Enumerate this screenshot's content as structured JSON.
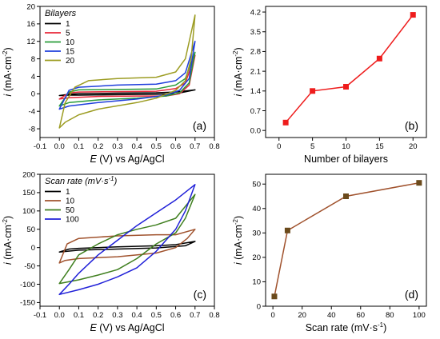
{
  "chart_data": [
    {
      "panel_label": "(a)",
      "type": "line",
      "subtype": "cyclic-voltammogram",
      "xlabel_var": "E",
      "xlabel_rest": " (V) vs Ag/AgCl",
      "ylabel_var": "i",
      "ylabel_rest": " (mA·cm",
      "ylabel_sup": "-2",
      "ylabel_close": ")",
      "xlim": [
        -0.1,
        0.8
      ],
      "ylim": [
        -10,
        20
      ],
      "xticks": [
        "-0.1",
        "0.0",
        "0.1",
        "0.2",
        "0.3",
        "0.4",
        "0.5",
        "0.6",
        "0.7",
        "0.8"
      ],
      "yticks": [
        "-8",
        "-4",
        "0",
        "4",
        "8",
        "12",
        "16",
        "20"
      ],
      "legend_title": "Bilayers",
      "legend_placement": "top-left",
      "series": [
        {
          "name": "1",
          "color": "#000000",
          "forward": [
            [
              0,
              -0.4
            ],
            [
              0.05,
              -0.1
            ],
            [
              0.1,
              0.0
            ],
            [
              0.3,
              0.15
            ],
            [
              0.5,
              0.25
            ],
            [
              0.6,
              0.4
            ],
            [
              0.7,
              0.9
            ]
          ],
          "reverse": [
            [
              0.7,
              0.9
            ],
            [
              0.6,
              0.0
            ],
            [
              0.5,
              -0.1
            ],
            [
              0.3,
              -0.2
            ],
            [
              0.1,
              -0.3
            ],
            [
              0.05,
              -0.3
            ],
            [
              0,
              -0.4
            ]
          ]
        },
        {
          "name": "5",
          "color": "#e8283a",
          "forward": [
            [
              0,
              -1.2
            ],
            [
              0.05,
              0.2
            ],
            [
              0.1,
              0.4
            ],
            [
              0.3,
              0.5
            ],
            [
              0.5,
              0.6
            ],
            [
              0.6,
              1.2
            ],
            [
              0.65,
              2.5
            ],
            [
              0.7,
              8.8
            ]
          ],
          "reverse": [
            [
              0.7,
              8.8
            ],
            [
              0.67,
              2.0
            ],
            [
              0.62,
              0.0
            ],
            [
              0.55,
              -0.5
            ],
            [
              0.4,
              -0.5
            ],
            [
              0.2,
              -0.6
            ],
            [
              0.05,
              -0.9
            ],
            [
              0,
              -1.2
            ]
          ]
        },
        {
          "name": "10",
          "color": "#2a9c3a",
          "forward": [
            [
              0,
              -2.8
            ],
            [
              0.05,
              0.4
            ],
            [
              0.1,
              0.9
            ],
            [
              0.3,
              1.0
            ],
            [
              0.5,
              1.1
            ],
            [
              0.6,
              2.0
            ],
            [
              0.65,
              3.5
            ],
            [
              0.7,
              9.5
            ]
          ],
          "reverse": [
            [
              0.7,
              9.5
            ],
            [
              0.67,
              2.5
            ],
            [
              0.62,
              0.2
            ],
            [
              0.55,
              -0.5
            ],
            [
              0.4,
              -1.0
            ],
            [
              0.2,
              -1.4
            ],
            [
              0.05,
              -2.0
            ],
            [
              0,
              -2.8
            ]
          ]
        },
        {
          "name": "15",
          "color": "#1f3fdc",
          "forward": [
            [
              0,
              -3.5
            ],
            [
              0.05,
              0.8
            ],
            [
              0.1,
              1.5
            ],
            [
              0.3,
              2.0
            ],
            [
              0.5,
              2.2
            ],
            [
              0.6,
              3.0
            ],
            [
              0.65,
              4.8
            ],
            [
              0.7,
              12.0
            ]
          ],
          "reverse": [
            [
              0.7,
              12.0
            ],
            [
              0.67,
              3.5
            ],
            [
              0.62,
              0.8
            ],
            [
              0.55,
              -0.3
            ],
            [
              0.4,
              -1.2
            ],
            [
              0.2,
              -2.0
            ],
            [
              0.05,
              -2.8
            ],
            [
              0,
              -3.5
            ]
          ]
        },
        {
          "name": "20",
          "color": "#9c9c22",
          "forward": [
            [
              0,
              -7.8
            ],
            [
              0.03,
              -2.0
            ],
            [
              0.08,
              1.5
            ],
            [
              0.15,
              3.0
            ],
            [
              0.3,
              3.5
            ],
            [
              0.5,
              3.8
            ],
            [
              0.6,
              5.0
            ],
            [
              0.65,
              8.0
            ],
            [
              0.7,
              18.0
            ]
          ],
          "reverse": [
            [
              0.7,
              18.0
            ],
            [
              0.68,
              8.0
            ],
            [
              0.65,
              3.0
            ],
            [
              0.6,
              0.8
            ],
            [
              0.5,
              -1.0
            ],
            [
              0.4,
              -2.0
            ],
            [
              0.2,
              -3.5
            ],
            [
              0.1,
              -4.8
            ],
            [
              0.03,
              -6.5
            ],
            [
              0,
              -7.8
            ]
          ]
        }
      ]
    },
    {
      "panel_label": "(b)",
      "type": "line",
      "xlabel": "Number of bilayers",
      "ylabel_var": "i",
      "ylabel_rest": " (mA·cm",
      "ylabel_sup": "-2",
      "ylabel_close": ")",
      "xlim": [
        -2,
        22
      ],
      "ylim": [
        -0.25,
        4.4
      ],
      "xticks": [
        "0",
        "5",
        "10",
        "15",
        "20"
      ],
      "yticks": [
        "0.0",
        "0.7",
        "1.4",
        "2.1",
        "2.8",
        "3.5",
        "4.2"
      ],
      "series": [
        {
          "color": "#ee1c1c",
          "x": [
            1,
            5,
            10,
            15,
            20
          ],
          "y": [
            0.28,
            1.4,
            1.55,
            2.55,
            4.1
          ]
        }
      ]
    },
    {
      "panel_label": "(c)",
      "type": "line",
      "subtype": "cyclic-voltammogram",
      "xlabel_var": "E",
      "xlabel_rest": " (V) vs Ag/AgCl",
      "ylabel_var": "i",
      "ylabel_rest": " (mA·cm",
      "ylabel_sup": "-2",
      "ylabel_close": ")",
      "xlim": [
        -0.1,
        0.8
      ],
      "ylim": [
        -160,
        200
      ],
      "xticks": [
        "-0.1",
        "0.0",
        "0.1",
        "0.2",
        "0.3",
        "0.4",
        "0.5",
        "0.6",
        "0.7",
        "0.8"
      ],
      "yticks": [
        "-150",
        "-100",
        "-50",
        "0",
        "50",
        "100",
        "150",
        "200"
      ],
      "legend_title": "Scan rate (mV·s",
      "legend_title_sup": "-1",
      "legend_title_close": ")",
      "legend_placement": "top-left",
      "series": [
        {
          "name": "1",
          "color": "#000000",
          "forward": [
            [
              0,
              -12
            ],
            [
              0.05,
              -4
            ],
            [
              0.1,
              -2
            ],
            [
              0.3,
              2
            ],
            [
              0.5,
              5
            ],
            [
              0.6,
              8
            ],
            [
              0.7,
              17
            ]
          ],
          "reverse": [
            [
              0.7,
              17
            ],
            [
              0.65,
              5
            ],
            [
              0.5,
              -1
            ],
            [
              0.3,
              -4
            ],
            [
              0.1,
              -7
            ],
            [
              0,
              -12
            ]
          ]
        },
        {
          "name": "10",
          "color": "#a0522d",
          "forward": [
            [
              0,
              -42
            ],
            [
              0.04,
              10
            ],
            [
              0.1,
              25
            ],
            [
              0.3,
              32
            ],
            [
              0.5,
              35
            ],
            [
              0.6,
              35
            ],
            [
              0.7,
              50
            ]
          ],
          "reverse": [
            [
              0.7,
              50
            ],
            [
              0.66,
              25
            ],
            [
              0.6,
              0
            ],
            [
              0.5,
              -15
            ],
            [
              0.3,
              -25
            ],
            [
              0.1,
              -30
            ],
            [
              0.03,
              -35
            ],
            [
              0,
              -42
            ]
          ]
        },
        {
          "name": "50",
          "color": "#3f7f1f",
          "forward": [
            [
              0,
              -98
            ],
            [
              0.05,
              -60
            ],
            [
              0.1,
              -20
            ],
            [
              0.2,
              10
            ],
            [
              0.3,
              35
            ],
            [
              0.4,
              50
            ],
            [
              0.5,
              62
            ],
            [
              0.6,
              80
            ],
            [
              0.7,
              145
            ]
          ],
          "reverse": [
            [
              0.7,
              145
            ],
            [
              0.65,
              80
            ],
            [
              0.6,
              40
            ],
            [
              0.5,
              10
            ],
            [
              0.4,
              -30
            ],
            [
              0.3,
              -60
            ],
            [
              0.2,
              -75
            ],
            [
              0.1,
              -88
            ],
            [
              0,
              -98
            ]
          ]
        },
        {
          "name": "100",
          "color": "#2020d8",
          "forward": [
            [
              0,
              -128
            ],
            [
              0.05,
              -100
            ],
            [
              0.1,
              -70
            ],
            [
              0.2,
              -20
            ],
            [
              0.3,
              20
            ],
            [
              0.4,
              60
            ],
            [
              0.5,
              95
            ],
            [
              0.6,
              130
            ],
            [
              0.7,
              172
            ]
          ],
          "reverse": [
            [
              0.7,
              172
            ],
            [
              0.65,
              100
            ],
            [
              0.6,
              50
            ],
            [
              0.5,
              -10
            ],
            [
              0.4,
              -55
            ],
            [
              0.3,
              -80
            ],
            [
              0.2,
              -100
            ],
            [
              0.1,
              -115
            ],
            [
              0,
              -128
            ]
          ]
        }
      ]
    },
    {
      "panel_label": "(d)",
      "type": "line",
      "xlabel": "Scan rate (mV·s",
      "xlabel_sup": "-1",
      "xlabel_close": ")",
      "ylabel_var": "i",
      "ylabel_rest": " (mA·cm",
      "ylabel_sup": "-2",
      "ylabel_close": ")",
      "xlim": [
        -5,
        105
      ],
      "ylim": [
        0,
        54
      ],
      "xticks": [
        "0",
        "20",
        "40",
        "60",
        "80",
        "100"
      ],
      "yticks": [
        "0",
        "10",
        "20",
        "30",
        "40",
        "50"
      ],
      "series": [
        {
          "color": "#a0522d",
          "marker_color": "#6b4a1c",
          "x": [
            1,
            10,
            50,
            100
          ],
          "y": [
            4,
            31,
            45,
            50.5
          ]
        }
      ]
    }
  ]
}
